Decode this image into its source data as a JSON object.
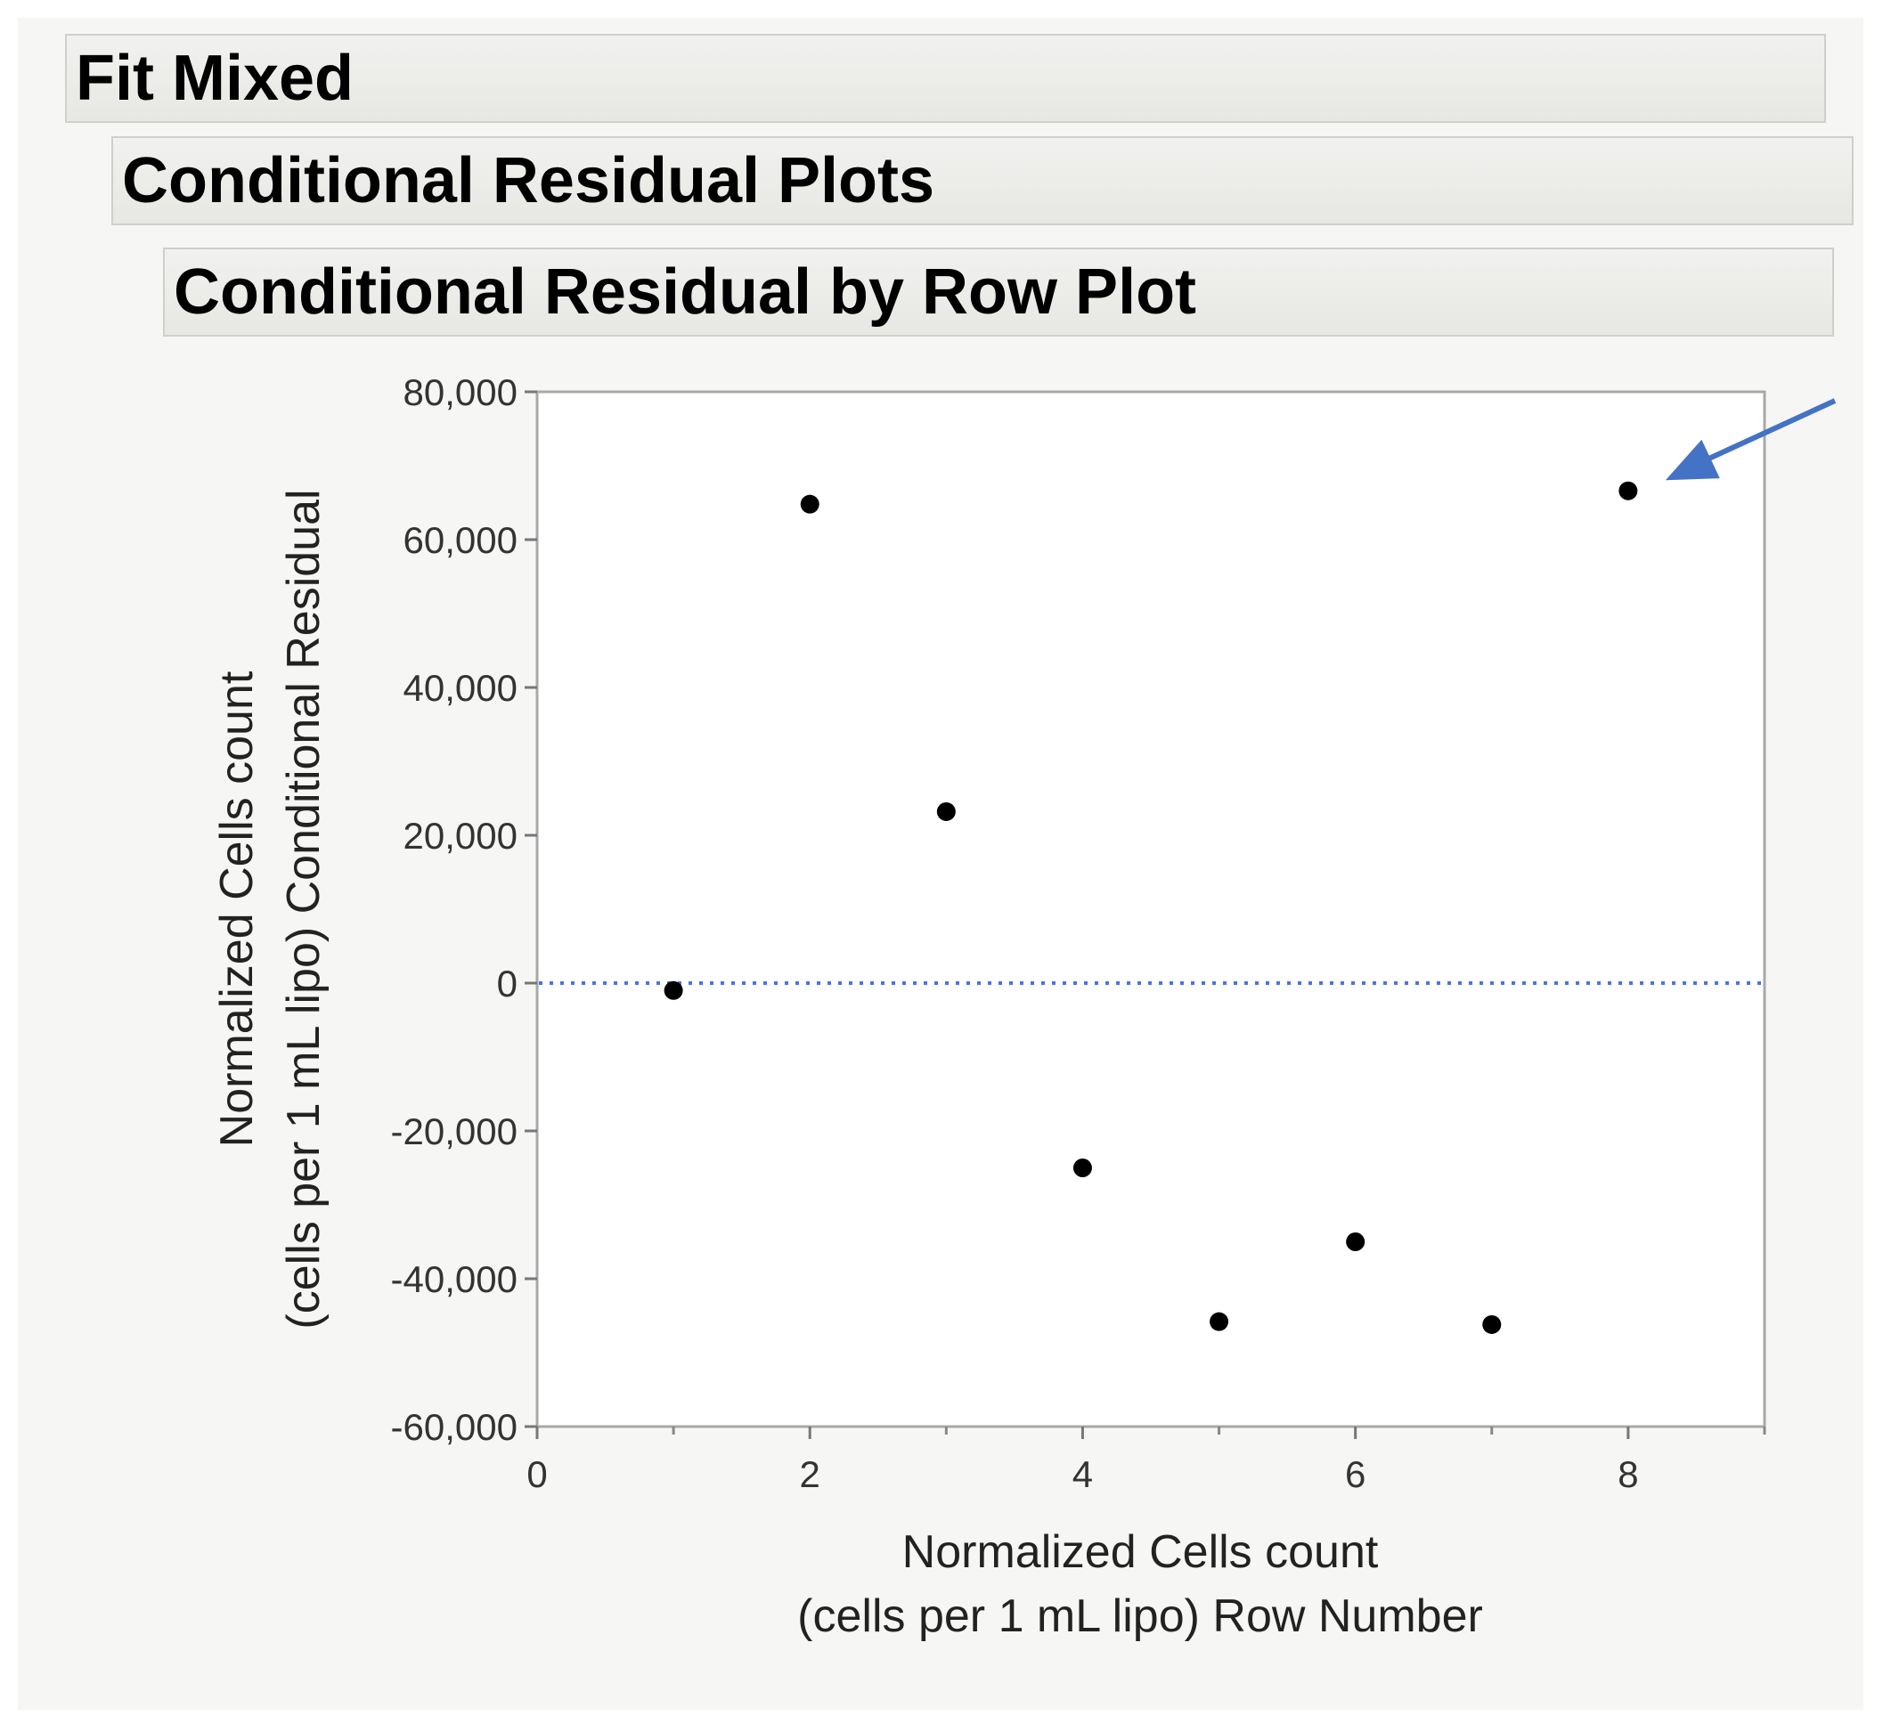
{
  "headers": {
    "fit_mixed": "Fit Mixed",
    "conditional_residual_plots": "Conditional Residual Plots",
    "residual_by_row_plot": "Conditional Residual by Row Plot"
  },
  "chart_data": {
    "type": "scatter",
    "title": "Conditional Residual by Row Plot",
    "xlabel_lines": [
      "Normalized Cells count",
      "(cells per 1 mL lipo) Row Number"
    ],
    "ylabel_lines": [
      "Normalized Cells count",
      "(cells per 1 mL lipo) Conditional Residual"
    ],
    "xlim": [
      0,
      9
    ],
    "ylim": [
      -60000,
      80000
    ],
    "x_ticks": [
      0,
      2,
      4,
      6,
      8
    ],
    "x_tick_labels": [
      "0",
      "2",
      "4",
      "6",
      "8"
    ],
    "x_minor_ticks": [
      1,
      3,
      5,
      7,
      9
    ],
    "y_ticks": [
      80000,
      60000,
      40000,
      20000,
      0,
      -20000,
      -40000,
      -60000
    ],
    "y_tick_labels": [
      "80,000",
      "60,000",
      "40,000",
      "20,000",
      "0",
      "-20,000",
      "-40,000",
      "-60,000"
    ],
    "reference_line": {
      "y": 0,
      "style": "dotted",
      "color": "#4a72e8"
    },
    "series": [
      {
        "name": "Conditional Residual",
        "color": "#000000",
        "points": [
          {
            "x": 1,
            "y": -1000
          },
          {
            "x": 2,
            "y": 64800
          },
          {
            "x": 3,
            "y": 23200
          },
          {
            "x": 4,
            "y": -25000
          },
          {
            "x": 5,
            "y": -45800
          },
          {
            "x": 6,
            "y": -35000
          },
          {
            "x": 7,
            "y": -46200
          },
          {
            "x": 8,
            "y": 66600
          }
        ]
      }
    ],
    "annotation": {
      "type": "arrow",
      "points_to": {
        "x": 8,
        "y": 66600
      },
      "color": "#4472c4"
    }
  }
}
